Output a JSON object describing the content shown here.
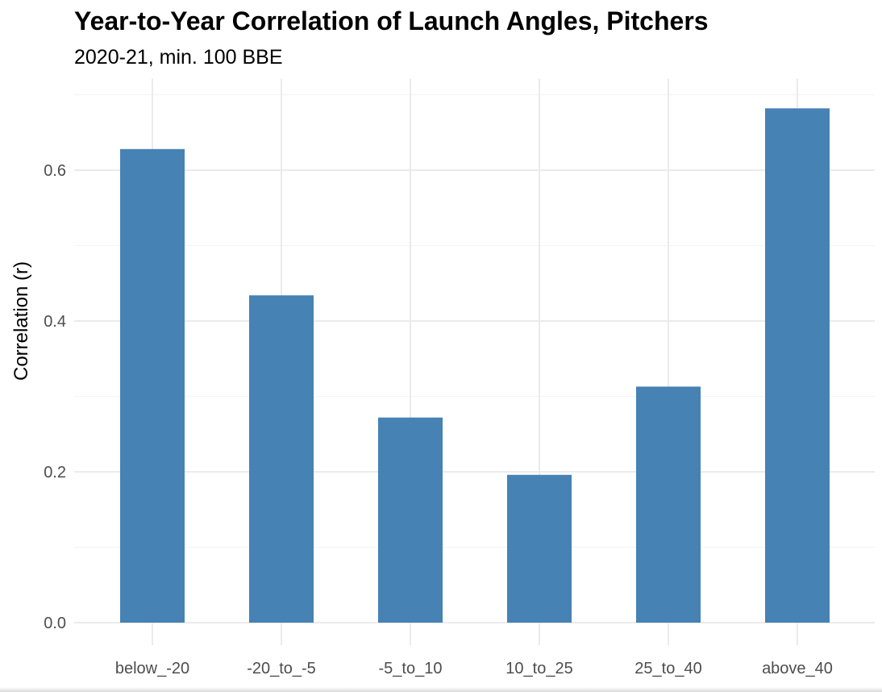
{
  "chart_data": {
    "type": "bar",
    "title": "Year-to-Year Correlation of Launch Angles, Pitchers",
    "subtitle": "2020-21, min. 100 BBE",
    "xlabel": "",
    "ylabel": "Correlation (r)",
    "categories": [
      "below_-20",
      "-20_to_-5",
      "-5_to_10",
      "10_to_25",
      "25_to_40",
      "above_40"
    ],
    "values": [
      0.628,
      0.434,
      0.272,
      0.196,
      0.313,
      0.682
    ],
    "ylim": [
      0,
      0.7
    ],
    "yticks": [
      0.0,
      0.2,
      0.4,
      0.6
    ],
    "ytick_labels": [
      "0.0",
      "0.2",
      "0.4",
      "0.6"
    ],
    "bar_color": "#4682b4",
    "grid": true,
    "legend": "none"
  }
}
